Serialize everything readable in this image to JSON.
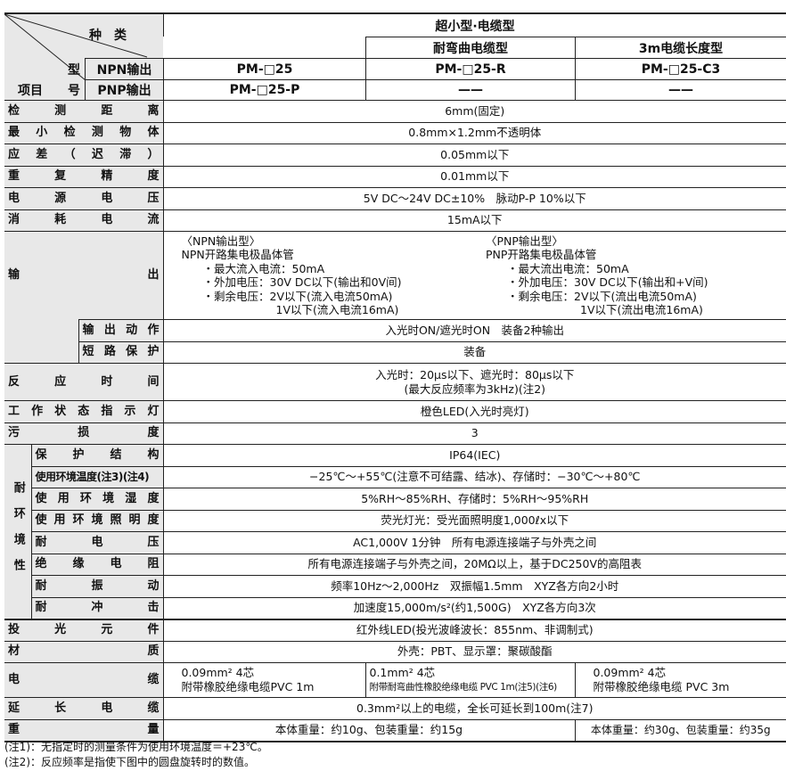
{
  "header": {
    "kind_label": "种　类",
    "model_label_1": "型",
    "model_label_2": "号",
    "item_label": "项目",
    "npn_label": "NPN输出",
    "pnp_label": "PNP输出",
    "category": "超小型·电缆型",
    "sub_bend": "耐弯曲电缆型",
    "sub_3m": "3m电缆长度型",
    "npn_models": [
      "PM-□25",
      "PM-□25-R",
      "PM-□25-C3"
    ],
    "pnp_models": [
      "PM-□25-P",
      "——",
      "——"
    ]
  },
  "rows": {
    "distance": {
      "label": "检测距离",
      "value": "6mm(固定)"
    },
    "min_object": {
      "label": "最小检测物体",
      "value": "0.8mm×1.2mm不透明体"
    },
    "hysteresis": {
      "label": "应差（迟滞）",
      "value": "0.05mm以下"
    },
    "repeat": {
      "label": "重复精度",
      "value": "0.01mm以下"
    },
    "voltage": {
      "label": "电源电压",
      "value": "5V DC～24V DC±10%　脉动P-P 10%以下"
    },
    "current": {
      "label": "消耗电流",
      "value": "15mA以下"
    },
    "output": {
      "label": "输出",
      "npn": [
        "〈NPN输出型〉",
        "NPN开路集电极晶体管",
        "・最大流入电流：50mA",
        "・外加电压：30V DC以下(输出和0V间)",
        "・剩余电压：2V以下(流入电流50mA)",
        "1V以下(流入电流16mA)"
      ],
      "pnp": [
        "〈PNP输出型〉",
        "PNP开路集电极晶体管",
        "・最大流出电流：50mA",
        "・外加电压：30V DC以下(输出和+V间)",
        "・剩余电压：2V以下(流出电流50mA)",
        "1V以下(流出电流16mA)"
      ]
    },
    "output_action": {
      "label": "输出动作",
      "value": "入光时ON/遮光时ON　装备2种输出"
    },
    "short_protect": {
      "label": "短路保护",
      "value": "装备"
    },
    "response": {
      "label": "反应时间",
      "value1": "入光时：20μs以下、遮光时：80μs以下",
      "value2": "(最大反应频率为3kHz)(注2)"
    },
    "indicator": {
      "label": "工作状态指示灯",
      "value": "橙色LED(入光时亮灯)"
    },
    "pollution": {
      "label": "污损度",
      "value": "3"
    },
    "env_label": "耐环境性",
    "env": [
      {
        "label": "保护结构",
        "value": "IP64(IEC)"
      },
      {
        "label": "使用环境温度(注3)(注4)",
        "value": "−25℃～+55℃(注意不可结露、结冰)、存储时：−30℃～+80℃"
      },
      {
        "label": "使用环境湿度",
        "value": "5%RH～85%RH、存储时：5%RH～95%RH"
      },
      {
        "label": "使用环境照明度",
        "value": "荧光灯光：受光面照明度1,000ℓx以下"
      },
      {
        "label": "耐电压",
        "value": "AC1,000V 1分钟　所有电源连接端子与外壳之间"
      },
      {
        "label": "绝缘电阻",
        "value": "所有电源连接端子与外壳之间，20MΩ以上，基于DC250V的高阻表"
      },
      {
        "label": "耐振动",
        "value": "频率10Hz～2,000Hz　双振幅1.5mm　XYZ各方向2小时"
      },
      {
        "label": "耐冲击",
        "value": "加速度15,000m/s²(约1,500G)　XYZ各方向3次"
      }
    ],
    "emitter": {
      "label": "投光元件",
      "value": "红外线LED(投光波峰波长：855nm、非调制式)"
    },
    "material": {
      "label": "材质",
      "value": "外壳：PBT、显示罩：聚碳酸酯"
    },
    "cable": {
      "label": "电缆",
      "c1a": "0.09mm² 4芯",
      "c1b": "附带橡胶绝缘电缆PVC 1m",
      "c2a": "0.1mm² 4芯",
      "c2b": "附带耐弯曲性橡胶绝缘电缆 PVC 1m(注5)(注6)",
      "c3a": "0.09mm² 4芯",
      "c3b": "附带橡胶绝缘电缆 PVC 3m"
    },
    "ext_cable": {
      "label": "延长电缆",
      "value": "0.3mm²以上的电缆，全长可延长到100m(注7)"
    },
    "weight": {
      "label": "重量",
      "v1": "本体重量：约10g、包装重量：约15g",
      "v2": "本体重量：约30g、包装重量：约35g"
    }
  },
  "notes": [
    "(注1)：无指定时的测量条件为使用环境温度＝+23℃。",
    "(注2)：反应频率是指使下图中的圆盘旋转时的数值。"
  ]
}
